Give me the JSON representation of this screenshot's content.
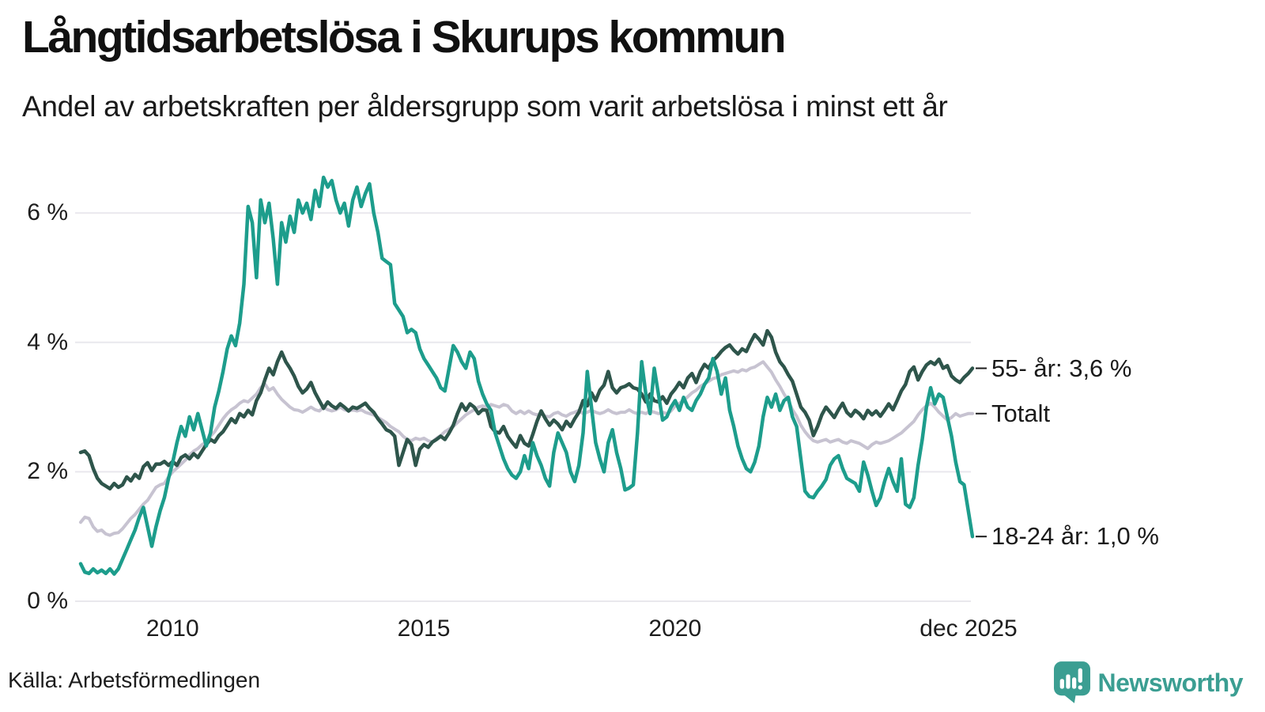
{
  "header": {
    "title": "Långtidsarbetslösa i Skurups kommun",
    "subtitle": "Andel av arbetskraften per åldersgrupp som varit arbetslösa i minst ett år"
  },
  "footer": {
    "source": "Källa: Arbetsförmedlingen",
    "brand": "Newsworthy",
    "brand_color": "#3b9e92"
  },
  "chart_data": {
    "type": "line",
    "title": "Långtidsarbetslösa i Skurups kommun",
    "subtitle": "Andel av arbetskraften per åldersgrupp som varit arbetslösa i minst ett år",
    "unit": "%",
    "grid": true,
    "grid_color": "#e9e8ed",
    "x_axis": {
      "start": 2008.17,
      "step": 0.0833333,
      "ticks": [
        {
          "label": "2010",
          "t": 2010.0
        },
        {
          "label": "2015",
          "t": 2015.0
        },
        {
          "label": "2020",
          "t": 2020.0
        },
        {
          "label": "dec 2025",
          "t": 2025.92
        }
      ]
    },
    "y_axis": {
      "range": [
        0,
        6.9
      ],
      "ticks": [
        {
          "label": "0 %",
          "value": 0
        },
        {
          "label": "2 %",
          "value": 2
        },
        {
          "label": "4 %",
          "value": 4
        },
        {
          "label": "6 %",
          "value": 6
        }
      ]
    },
    "series": [
      {
        "id": "totalt",
        "name": "Totalt",
        "color": "#c7c3d1",
        "width": 4,
        "end_label": "Totalt",
        "end_value": 2.9,
        "values": [
          1.22,
          1.3,
          1.28,
          1.15,
          1.08,
          1.1,
          1.04,
          1.02,
          1.05,
          1.06,
          1.12,
          1.2,
          1.28,
          1.34,
          1.42,
          1.5,
          1.56,
          1.66,
          1.76,
          1.8,
          1.82,
          1.92,
          2.0,
          2.06,
          2.12,
          2.18,
          2.26,
          2.32,
          2.36,
          2.42,
          2.46,
          2.55,
          2.62,
          2.72,
          2.82,
          2.9,
          2.96,
          3.0,
          3.06,
          3.1,
          3.08,
          3.14,
          3.2,
          3.3,
          3.36,
          3.26,
          3.3,
          3.2,
          3.12,
          3.06,
          3.0,
          2.96,
          2.95,
          2.92,
          2.96,
          3.0,
          2.96,
          2.94,
          3.0,
          2.96,
          2.94,
          2.96,
          3.0,
          2.96,
          2.94,
          2.96,
          2.94,
          2.96,
          2.92,
          2.9,
          2.88,
          2.84,
          2.8,
          2.76,
          2.7,
          2.66,
          2.62,
          2.55,
          2.5,
          2.48,
          2.52,
          2.5,
          2.52,
          2.48,
          2.46,
          2.52,
          2.56,
          2.62,
          2.66,
          2.7,
          2.76,
          2.82,
          2.88,
          2.92,
          2.96,
          3.0,
          3.02,
          3.0,
          3.04,
          3.02,
          3.0,
          3.04,
          3.02,
          2.94,
          2.9,
          2.94,
          2.9,
          2.94,
          2.9,
          2.88,
          2.9,
          2.86,
          2.85,
          2.9,
          2.92,
          2.88,
          2.86,
          2.9,
          2.92,
          2.95,
          2.9,
          2.92,
          2.95,
          2.92,
          2.9,
          2.92,
          2.96,
          2.92,
          2.9,
          2.92,
          2.92,
          2.96,
          2.92,
          2.9,
          2.92,
          2.9,
          2.94,
          2.92,
          2.9,
          2.92,
          2.9,
          2.94,
          3.02,
          3.06,
          3.1,
          3.16,
          3.22,
          3.26,
          3.32,
          3.36,
          3.4,
          3.44,
          3.46,
          3.5,
          3.52,
          3.54,
          3.56,
          3.54,
          3.58,
          3.56,
          3.6,
          3.62,
          3.66,
          3.7,
          3.62,
          3.54,
          3.42,
          3.32,
          3.2,
          3.1,
          2.96,
          2.86,
          2.72,
          2.62,
          2.54,
          2.48,
          2.46,
          2.48,
          2.5,
          2.46,
          2.48,
          2.5,
          2.46,
          2.44,
          2.48,
          2.46,
          2.44,
          2.4,
          2.36,
          2.42,
          2.46,
          2.44,
          2.46,
          2.48,
          2.52,
          2.56,
          2.6,
          2.66,
          2.72,
          2.78,
          2.88,
          2.96,
          3.02,
          3.06,
          3.0,
          2.92,
          2.86,
          2.8,
          2.84,
          2.9,
          2.86,
          2.88,
          2.9,
          2.9
        ]
      },
      {
        "id": "55-ar",
        "name": "55- år",
        "color": "#2e554b",
        "width": 4.5,
        "end_label": "55- år: 3,6 %",
        "end_value": 3.6,
        "values": [
          2.3,
          2.32,
          2.25,
          2.05,
          1.9,
          1.82,
          1.78,
          1.74,
          1.82,
          1.76,
          1.8,
          1.92,
          1.86,
          1.96,
          1.9,
          2.08,
          2.14,
          2.02,
          2.12,
          2.12,
          2.16,
          2.1,
          2.16,
          2.1,
          2.22,
          2.26,
          2.2,
          2.28,
          2.22,
          2.32,
          2.42,
          2.5,
          2.46,
          2.56,
          2.62,
          2.72,
          2.82,
          2.76,
          2.9,
          2.85,
          2.95,
          2.88,
          3.1,
          3.22,
          3.42,
          3.6,
          3.5,
          3.7,
          3.85,
          3.7,
          3.6,
          3.48,
          3.32,
          3.22,
          3.28,
          3.38,
          3.22,
          3.1,
          2.98,
          3.08,
          3.02,
          2.98,
          3.05,
          3.0,
          2.94,
          3.0,
          2.98,
          3.02,
          3.06,
          2.98,
          2.92,
          2.82,
          2.74,
          2.65,
          2.62,
          2.55,
          2.1,
          2.3,
          2.5,
          2.42,
          2.1,
          2.35,
          2.42,
          2.38,
          2.46,
          2.5,
          2.55,
          2.5,
          2.6,
          2.72,
          2.9,
          3.05,
          2.95,
          3.05,
          3.0,
          2.9,
          2.96,
          2.95,
          2.7,
          2.62,
          2.6,
          2.7,
          2.55,
          2.46,
          2.38,
          2.56,
          2.44,
          2.4,
          2.58,
          2.78,
          2.94,
          2.82,
          2.72,
          2.8,
          2.74,
          2.65,
          2.78,
          2.7,
          2.82,
          2.92,
          3.1,
          3.02,
          3.22,
          3.1,
          3.26,
          3.34,
          3.55,
          3.3,
          3.22,
          3.3,
          3.32,
          3.36,
          3.3,
          3.28,
          3.2,
          3.08,
          3.2,
          3.1,
          3.08,
          3.16,
          3.06,
          3.2,
          3.28,
          3.38,
          3.3,
          3.45,
          3.52,
          3.38,
          3.55,
          3.66,
          3.6,
          3.72,
          3.78,
          3.86,
          3.92,
          3.96,
          3.88,
          3.82,
          3.9,
          3.86,
          4.0,
          4.12,
          4.05,
          3.96,
          4.18,
          4.08,
          3.85,
          3.7,
          3.62,
          3.5,
          3.4,
          3.2,
          3.0,
          2.92,
          2.8,
          2.56,
          2.7,
          2.88,
          3.0,
          2.92,
          2.84,
          2.96,
          3.06,
          2.92,
          2.86,
          2.95,
          2.9,
          2.82,
          2.95,
          2.88,
          2.94,
          2.86,
          2.95,
          3.05,
          2.96,
          3.1,
          3.25,
          3.35,
          3.55,
          3.62,
          3.42,
          3.55,
          3.65,
          3.7,
          3.66,
          3.74,
          3.6,
          3.64,
          3.48,
          3.42,
          3.38,
          3.46,
          3.52,
          3.6
        ]
      },
      {
        "id": "18-24-ar",
        "name": "18-24 år",
        "color": "#1d9d8c",
        "width": 4.5,
        "end_label": "18-24 år: 1,0 %",
        "end_value": 1.0,
        "values": [
          0.58,
          0.45,
          0.43,
          0.5,
          0.44,
          0.48,
          0.43,
          0.5,
          0.42,
          0.5,
          0.65,
          0.8,
          0.95,
          1.1,
          1.3,
          1.45,
          1.15,
          0.85,
          1.15,
          1.4,
          1.6,
          1.9,
          2.15,
          2.45,
          2.7,
          2.55,
          2.85,
          2.65,
          2.9,
          2.65,
          2.4,
          2.6,
          3.0,
          3.25,
          3.55,
          3.9,
          4.1,
          3.95,
          4.3,
          4.9,
          6.1,
          5.85,
          5.0,
          6.2,
          5.85,
          6.15,
          5.6,
          4.9,
          5.85,
          5.55,
          5.95,
          5.7,
          6.2,
          6.0,
          6.15,
          5.9,
          6.35,
          6.1,
          6.55,
          6.4,
          6.5,
          6.2,
          6.0,
          6.15,
          5.8,
          6.2,
          6.4,
          6.1,
          6.3,
          6.45,
          6.0,
          5.7,
          5.3,
          5.25,
          5.2,
          4.6,
          4.5,
          4.4,
          4.15,
          4.2,
          4.15,
          3.9,
          3.75,
          3.65,
          3.55,
          3.45,
          3.3,
          3.25,
          3.6,
          3.95,
          3.85,
          3.7,
          3.6,
          3.85,
          3.75,
          3.4,
          3.2,
          3.05,
          2.95,
          2.6,
          2.4,
          2.2,
          2.05,
          1.95,
          1.9,
          2.0,
          2.25,
          2.05,
          2.45,
          2.25,
          2.1,
          1.9,
          1.78,
          2.3,
          2.6,
          2.45,
          2.3,
          2.0,
          1.85,
          2.1,
          2.6,
          3.55,
          3.0,
          2.45,
          2.2,
          2.0,
          2.45,
          2.65,
          2.3,
          2.05,
          1.72,
          1.75,
          1.8,
          2.6,
          3.7,
          3.2,
          2.9,
          3.6,
          3.2,
          2.8,
          2.85,
          3.0,
          3.1,
          2.95,
          3.15,
          3.0,
          2.95,
          3.1,
          3.2,
          3.35,
          3.45,
          3.75,
          3.55,
          3.2,
          3.45,
          2.95,
          2.7,
          2.4,
          2.2,
          2.05,
          2.0,
          2.15,
          2.4,
          2.85,
          3.15,
          3.0,
          3.2,
          2.95,
          3.1,
          3.15,
          2.85,
          2.7,
          2.2,
          1.7,
          1.62,
          1.6,
          1.7,
          1.78,
          1.88,
          2.1,
          2.2,
          2.25,
          2.05,
          1.9,
          1.86,
          1.82,
          1.7,
          2.15,
          1.95,
          1.7,
          1.48,
          1.6,
          1.85,
          2.05,
          1.85,
          1.7,
          2.2,
          1.5,
          1.45,
          1.6,
          2.1,
          2.5,
          3.0,
          3.3,
          3.05,
          3.2,
          3.15,
          2.85,
          2.55,
          2.15,
          1.85,
          1.8,
          1.4,
          1.0
        ]
      }
    ]
  }
}
